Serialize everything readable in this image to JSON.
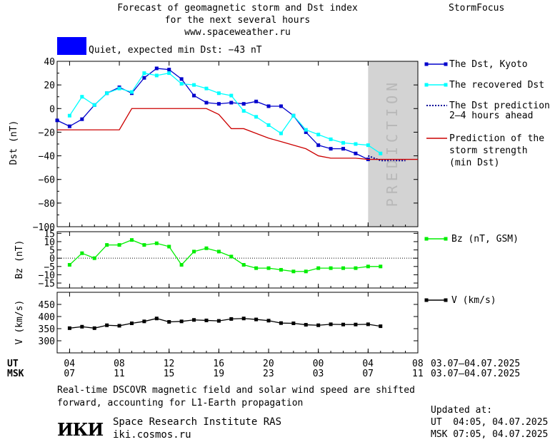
{
  "header": {
    "title_lines": [
      "Forecast of geomagnetic storm and Dst index",
      "for the next several hours",
      "www.spaceweather.ru"
    ],
    "brand": "StormFocus",
    "status_text": "Quiet, expected min Dst: −43 nT",
    "status_color": "#0000ff"
  },
  "legend": {
    "dst_kyoto": "The Dst, Kyoto",
    "dst_recovered": "The recovered Dst",
    "dst_prediction_1": "The Dst prediction",
    "dst_prediction_2": "2–4 hours ahead",
    "storm_1": "Prediction of the",
    "storm_2": "storm strength",
    "storm_3": "(min Dst)",
    "bz": "Bz (nT, GSM)",
    "v": "V (km/s)"
  },
  "colors": {
    "kyoto": "#0000cc",
    "recovered": "#00ffff",
    "prediction": "#000099",
    "storm": "#cc0000",
    "bz": "#00ee00",
    "v": "#000000",
    "prediction_zone": "#d3d3d3"
  },
  "prediction_label": "PREDICTION",
  "time_axis": {
    "ut_label": "UT",
    "msk_label": "MSK",
    "ut_ticks": [
      "04",
      "08",
      "12",
      "16",
      "20",
      "00",
      "04",
      "08"
    ],
    "msk_ticks": [
      "07",
      "11",
      "15",
      "19",
      "23",
      "03",
      "07",
      "11"
    ],
    "ut_range": "03.07–04.07.2025",
    "msk_range": "03.07–04.07.2025"
  },
  "footer": {
    "note_1": "Real-time DSCOVR magnetic field and solar wind speed are shifted",
    "note_2": "forward, accounting for L1-Earth propagation",
    "logo": "ИКИ",
    "institute": "Space Research Institute RAS",
    "site": "iki.cosmos.ru",
    "updated_label": "Updated at:",
    "updated_ut": "UT  04:05, 04.07.2025",
    "updated_msk": "MSK 07:05, 04.07.2025"
  },
  "chart_data": [
    {
      "type": "line",
      "ylabel": "Dst (nT)",
      "ylim": [
        -100,
        40
      ],
      "yticks": [
        40,
        20,
        0,
        -20,
        -40,
        -60,
        -80,
        -100
      ],
      "x_unit_hours_since": "03.07.2025 03:00 UT",
      "xlim": [
        0,
        29
      ],
      "prediction_zone": [
        25,
        29
      ],
      "series": [
        {
          "name": "The Dst, Kyoto",
          "marker": "square",
          "x": [
            0,
            1,
            2,
            3,
            4,
            5,
            6,
            7,
            8,
            9,
            10,
            11,
            12,
            13,
            14,
            15,
            16,
            17,
            18,
            19,
            20,
            21,
            22,
            23,
            24,
            25
          ],
          "y": [
            -10,
            -15,
            -9,
            3,
            13,
            18,
            13,
            26,
            34,
            33,
            25,
            11,
            5,
            4,
            5,
            4,
            6,
            2,
            2,
            -6,
            -20,
            -31,
            -34,
            -34,
            -38,
            -43
          ]
        },
        {
          "name": "The recovered Dst",
          "marker": "square",
          "x": [
            1,
            2,
            3,
            4,
            5,
            6,
            7,
            8,
            9,
            10,
            11,
            12,
            13,
            14,
            15,
            16,
            17,
            18,
            19,
            20,
            21,
            22,
            23,
            24,
            25,
            26
          ],
          "y": [
            -6,
            10,
            3,
            13,
            17,
            14,
            30,
            28,
            30,
            21,
            20,
            17,
            13,
            11,
            -2,
            -7,
            -14,
            -21,
            -6,
            -18,
            -22,
            -26,
            -29,
            -30,
            -31,
            -38
          ]
        },
        {
          "name": "The Dst prediction 2–4 hours ahead",
          "marker": "none",
          "dashed": true,
          "x": [
            25,
            26,
            27,
            28
          ],
          "y": [
            -40,
            -44,
            -44,
            -44
          ]
        },
        {
          "name": "Prediction of the storm strength (min Dst)",
          "marker": "none",
          "x": [
            0,
            5,
            6,
            7,
            8,
            9,
            10,
            11,
            12,
            13,
            14,
            15,
            16,
            17,
            18,
            19,
            20,
            21,
            22,
            23,
            24,
            25,
            26,
            27,
            28,
            29
          ],
          "y": [
            -18,
            -18,
            0,
            0,
            0,
            0,
            0,
            0,
            0,
            -5,
            -17,
            -17,
            -21,
            -25,
            -28,
            -31,
            -34,
            -40,
            -42,
            -42,
            -42,
            -43,
            -43,
            -43,
            -43,
            -43
          ]
        }
      ]
    },
    {
      "type": "line",
      "ylabel": "Bz (nT)",
      "ylim": [
        -18,
        16
      ],
      "yticks": [
        15,
        10,
        5,
        0,
        -5,
        -10,
        -15
      ],
      "series": [
        {
          "name": "Bz (nT, GSM)",
          "marker": "square",
          "x": [
            1,
            2,
            3,
            4,
            5,
            6,
            7,
            8,
            9,
            10,
            11,
            12,
            13,
            14,
            15,
            16,
            17,
            18,
            19,
            20,
            21,
            22,
            23,
            24,
            25,
            26
          ],
          "y": [
            -4,
            3,
            0,
            8,
            8,
            11,
            8,
            9,
            7,
            -4,
            4,
            6,
            4,
            1,
            -4,
            -6,
            -6,
            -7,
            -8,
            -8,
            -6,
            -6,
            -6,
            -6,
            -5,
            -5
          ]
        }
      ]
    },
    {
      "type": "line",
      "ylabel": "V (km/s)",
      "ylim": [
        250,
        500
      ],
      "yticks": [
        450,
        400,
        350,
        300
      ],
      "series": [
        {
          "name": "V (km/s)",
          "marker": "square",
          "x": [
            1,
            2,
            3,
            4,
            5,
            6,
            7,
            8,
            9,
            10,
            11,
            12,
            13,
            14,
            15,
            16,
            17,
            18,
            19,
            20,
            21,
            22,
            23,
            24,
            25,
            26
          ],
          "y": [
            352,
            358,
            352,
            364,
            362,
            372,
            380,
            392,
            378,
            380,
            386,
            384,
            382,
            390,
            392,
            388,
            383,
            373,
            372,
            366,
            364,
            368,
            367,
            367,
            368,
            360
          ]
        }
      ]
    }
  ]
}
